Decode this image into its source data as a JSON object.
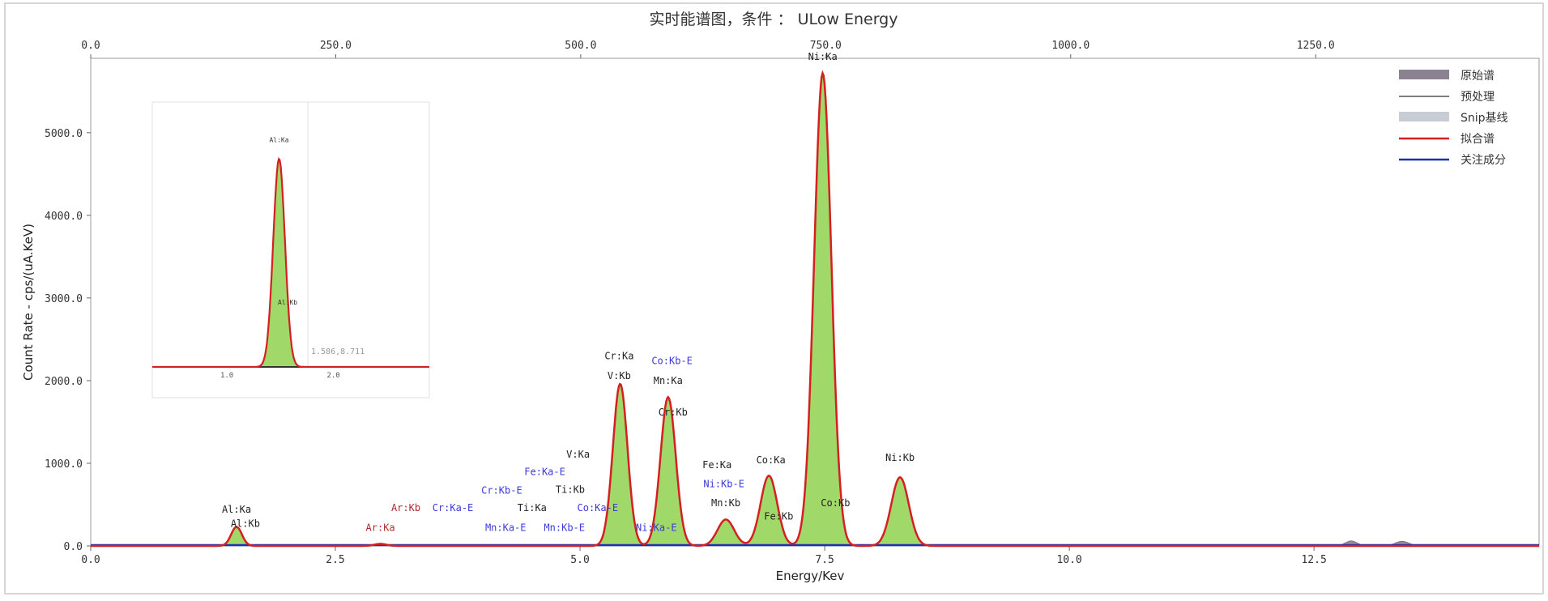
{
  "chart_data": {
    "type": "line",
    "title": "实时能谱图，条件 ： ULow Energy",
    "xlabel": "Energy/Kev",
    "ylabel": "Count Rate - cps/(uA.KeV)",
    "xlim": [
      0,
      14.8
    ],
    "ylim": [
      0,
      5900
    ],
    "x_ticks": [
      "0.0",
      "2.5",
      "5.0",
      "7.5",
      "10.0",
      "12.5"
    ],
    "x_tick_values": [
      0,
      2.5,
      5.0,
      7.5,
      10.0,
      12.5
    ],
    "x2_ticks": [
      "0.0",
      "250.0",
      "500.0",
      "750.0",
      "1000.0",
      "1250.0"
    ],
    "x2_tick_values": [
      0,
      250,
      500,
      750,
      1000,
      1250
    ],
    "x2lim": [
      0,
      1478
    ],
    "y_ticks": [
      "0.0",
      "1000.0",
      "2000.0",
      "3000.0",
      "4000.0",
      "5000.0"
    ],
    "y_tick_values": [
      0,
      1000,
      2000,
      3000,
      4000,
      5000
    ],
    "legend": {
      "position": "top-right",
      "entries": [
        {
          "name": "原始谱",
          "color": "#8a8290",
          "kind": "area"
        },
        {
          "name": "预处理",
          "color": "#333333",
          "kind": "line"
        },
        {
          "name": "Snip基线",
          "color": "#c8ccd4",
          "kind": "area"
        },
        {
          "name": "拟合谱",
          "color": "#d42020",
          "kind": "line"
        },
        {
          "name": "关注成分",
          "color": "#2030b0",
          "kind": "line"
        }
      ]
    },
    "peaks": [
      {
        "x": 1.49,
        "y": 230,
        "sigma": 0.055
      },
      {
        "x": 2.96,
        "y": 25,
        "sigma": 0.06
      },
      {
        "x": 5.41,
        "y": 1960,
        "sigma": 0.075
      },
      {
        "x": 5.9,
        "y": 1800,
        "sigma": 0.078
      },
      {
        "x": 6.49,
        "y": 320,
        "sigma": 0.085
      },
      {
        "x": 6.93,
        "y": 850,
        "sigma": 0.085
      },
      {
        "x": 7.48,
        "y": 5720,
        "sigma": 0.088
      },
      {
        "x": 8.27,
        "y": 830,
        "sigma": 0.09
      }
    ],
    "raw_bumps": [
      {
        "x": 12.88,
        "y": 60,
        "sigma": 0.06
      },
      {
        "x": 13.4,
        "y": 55,
        "sigma": 0.07
      }
    ],
    "annotations": [
      {
        "text": "Al:Ka",
        "x": 1.49,
        "y": 400,
        "color": "black"
      },
      {
        "text": "Al:Kb",
        "x": 1.58,
        "y": 230,
        "color": "black"
      },
      {
        "text": "Ar:Ka",
        "x": 2.96,
        "y": 180,
        "color": "red"
      },
      {
        "text": "Ar:Kb",
        "x": 3.22,
        "y": 420,
        "color": "red"
      },
      {
        "text": "Cr:Ka-E",
        "x": 3.7,
        "y": 420,
        "color": "blue"
      },
      {
        "text": "Cr:Kb-E",
        "x": 4.2,
        "y": 630,
        "color": "blue"
      },
      {
        "text": "Fe:Ka-E",
        "x": 4.64,
        "y": 860,
        "color": "blue"
      },
      {
        "text": "V:Ka",
        "x": 4.98,
        "y": 1070,
        "color": "black"
      },
      {
        "text": "Ti:Kb",
        "x": 4.9,
        "y": 640,
        "color": "black"
      },
      {
        "text": "Ti:Ka",
        "x": 4.51,
        "y": 420,
        "color": "black"
      },
      {
        "text": "Mn:Ka-E",
        "x": 4.24,
        "y": 180,
        "color": "blue"
      },
      {
        "text": "Mn:Kb-E",
        "x": 4.84,
        "y": 180,
        "color": "blue"
      },
      {
        "text": "Co:Ka-E",
        "x": 5.18,
        "y": 420,
        "color": "blue"
      },
      {
        "text": "Cr:Ka",
        "x": 5.4,
        "y": 2260,
        "color": "black"
      },
      {
        "text": "V:Kb",
        "x": 5.4,
        "y": 2020,
        "color": "black"
      },
      {
        "text": "Co:Kb-E",
        "x": 5.94,
        "y": 2200,
        "color": "blue"
      },
      {
        "text": "Mn:Ka",
        "x": 5.9,
        "y": 1960,
        "color": "black"
      },
      {
        "text": "Cr:Kb",
        "x": 5.95,
        "y": 1580,
        "color": "black"
      },
      {
        "text": "Ni:Ka-E",
        "x": 5.78,
        "y": 180,
        "color": "blue"
      },
      {
        "text": "Fe:Ka",
        "x": 6.4,
        "y": 940,
        "color": "black"
      },
      {
        "text": "Ni:Kb-E",
        "x": 6.47,
        "y": 710,
        "color": "blue"
      },
      {
        "text": "Mn:Kb",
        "x": 6.49,
        "y": 480,
        "color": "black"
      },
      {
        "text": "Co:Ka",
        "x": 6.95,
        "y": 1000,
        "color": "black"
      },
      {
        "text": "Fe:Kb",
        "x": 7.03,
        "y": 320,
        "color": "black"
      },
      {
        "text": "Co:Kb",
        "x": 7.61,
        "y": 480,
        "color": "black"
      },
      {
        "text": "Ni:Ka",
        "x": 7.48,
        "y": 5880,
        "color": "black"
      },
      {
        "text": "Ni:Kb",
        "x": 8.27,
        "y": 1030,
        "color": "black"
      }
    ],
    "inset": {
      "x_ticks": [
        "1.0",
        "2.0"
      ],
      "x_tick_values": [
        1.0,
        2.0
      ],
      "xlim": [
        0.3,
        2.9
      ],
      "peak": {
        "x": 1.49,
        "y": 1.0,
        "sigma": 0.055
      },
      "labels": [
        {
          "text": "Al:Ka",
          "x": 1.49,
          "y": 1.08
        },
        {
          "text": "Al:Kb",
          "x": 1.57,
          "y": 0.3
        }
      ],
      "readout": "1.586,8.711"
    }
  }
}
